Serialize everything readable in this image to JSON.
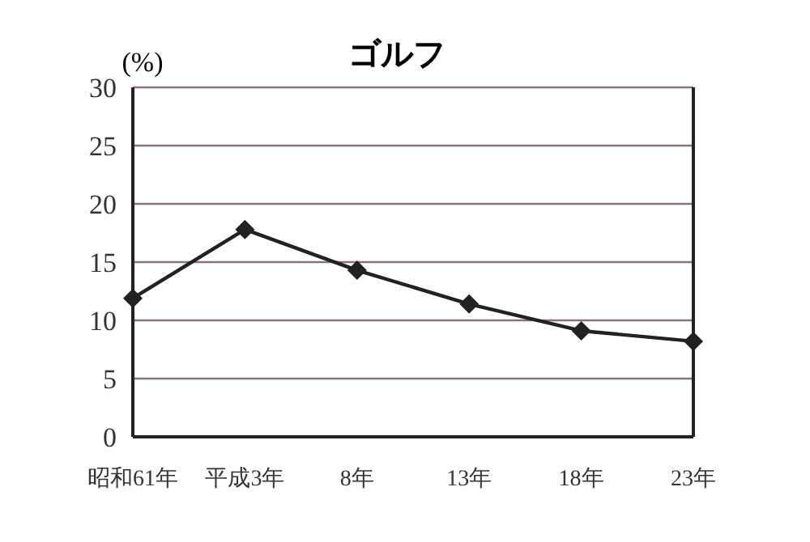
{
  "chart_data": {
    "type": "line",
    "title": "ゴルフ",
    "ylabel": "(%)",
    "categories": [
      "昭和61年",
      "平成3年",
      "8年",
      "13年",
      "18年",
      "23年"
    ],
    "series": [
      {
        "color": "#222222",
        "values": [
          11.9,
          17.8,
          14.3,
          11.4,
          9.1,
          8.2
        ]
      }
    ],
    "ylim": [
      0,
      30
    ],
    "yticks": [
      0,
      5,
      10,
      15,
      20,
      25,
      30
    ],
    "grid": "y",
    "marker": "diamond",
    "line_style": "solid"
  }
}
